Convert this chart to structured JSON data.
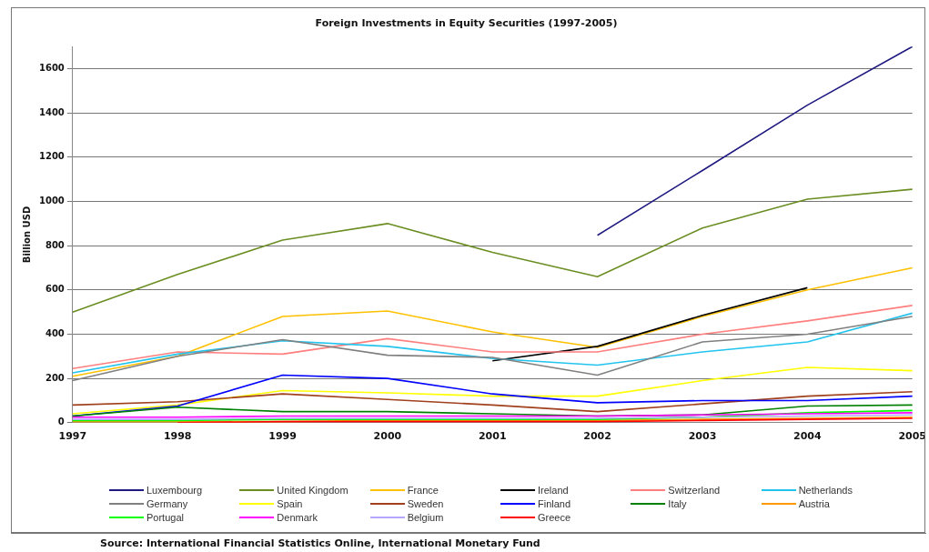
{
  "chart_data": {
    "type": "line",
    "title": "Foreign Investments in Equity Securities (1997-2005)",
    "ylabel": "Billion USD",
    "categories": [
      "1997",
      "1998",
      "1999",
      "2000",
      "2001",
      "2002",
      "2003",
      "2004",
      "2005"
    ],
    "ylim": [
      0,
      1700
    ],
    "yticks": [
      0,
      200,
      400,
      600,
      800,
      1000,
      1200,
      1400,
      1600
    ],
    "grid": "y",
    "legend": "bottom",
    "marker": "none",
    "line_style": "solid",
    "series": [
      {
        "name": "Luxembourg",
        "color": "#1f1a80",
        "values": [
          null,
          null,
          null,
          null,
          null,
          847,
          1140,
          1435,
          1700
        ]
      },
      {
        "name": "United Kingdom",
        "color": "#6b8e23",
        "values": [
          500,
          670,
          825,
          900,
          770,
          660,
          880,
          1010,
          1055
        ]
      },
      {
        "name": "France",
        "color": "#ffc000",
        "values": [
          210,
          300,
          480,
          505,
          410,
          340,
          480,
          600,
          700
        ]
      },
      {
        "name": "Ireland",
        "color": "#000000",
        "values": [
          null,
          null,
          null,
          null,
          280,
          345,
          485,
          610,
          null
        ]
      },
      {
        "name": "Switzerland",
        "color": "#ff7f7f",
        "values": [
          245,
          320,
          310,
          380,
          320,
          320,
          400,
          460,
          530
        ]
      },
      {
        "name": "Netherlands",
        "color": "#22c4ee",
        "values": [
          225,
          310,
          370,
          345,
          290,
          260,
          320,
          365,
          495
        ]
      },
      {
        "name": "Germany",
        "color": "#808080",
        "values": [
          190,
          300,
          375,
          305,
          295,
          215,
          365,
          400,
          480
        ]
      },
      {
        "name": "Spain",
        "color": "#ffff00",
        "values": [
          40,
          80,
          145,
          135,
          120,
          120,
          190,
          250,
          235
        ]
      },
      {
        "name": "Sweden",
        "color": "#a0401c",
        "values": [
          80,
          95,
          130,
          105,
          80,
          50,
          85,
          120,
          140
        ]
      },
      {
        "name": "Finland",
        "color": "#0000ff",
        "values": [
          30,
          75,
          215,
          200,
          130,
          90,
          100,
          100,
          120
        ]
      },
      {
        "name": "Italy",
        "color": "#008000",
        "values": [
          30,
          70,
          50,
          50,
          40,
          30,
          35,
          75,
          80
        ]
      },
      {
        "name": "Austria",
        "color": "#ff9900",
        "values": [
          5,
          5,
          5,
          10,
          10,
          10,
          15,
          20,
          25
        ]
      },
      {
        "name": "Portugal",
        "color": "#00ff00",
        "values": [
          10,
          10,
          15,
          15,
          15,
          15,
          25,
          45,
          55
        ]
      },
      {
        "name": "Denmark",
        "color": "#ff00ff",
        "values": [
          25,
          25,
          30,
          30,
          30,
          30,
          35,
          40,
          45
        ]
      },
      {
        "name": "Belgium",
        "color": "#b4a7ff",
        "values": [
          15,
          15,
          20,
          20,
          20,
          20,
          25,
          30,
          35
        ]
      },
      {
        "name": "Greece",
        "color": "#ff0000",
        "values": [
          null,
          0,
          5,
          5,
          5,
          5,
          10,
          15,
          20
        ]
      }
    ],
    "annotations": [
      "Source: International Financial Statistics Online, International Monetary Fund"
    ]
  }
}
